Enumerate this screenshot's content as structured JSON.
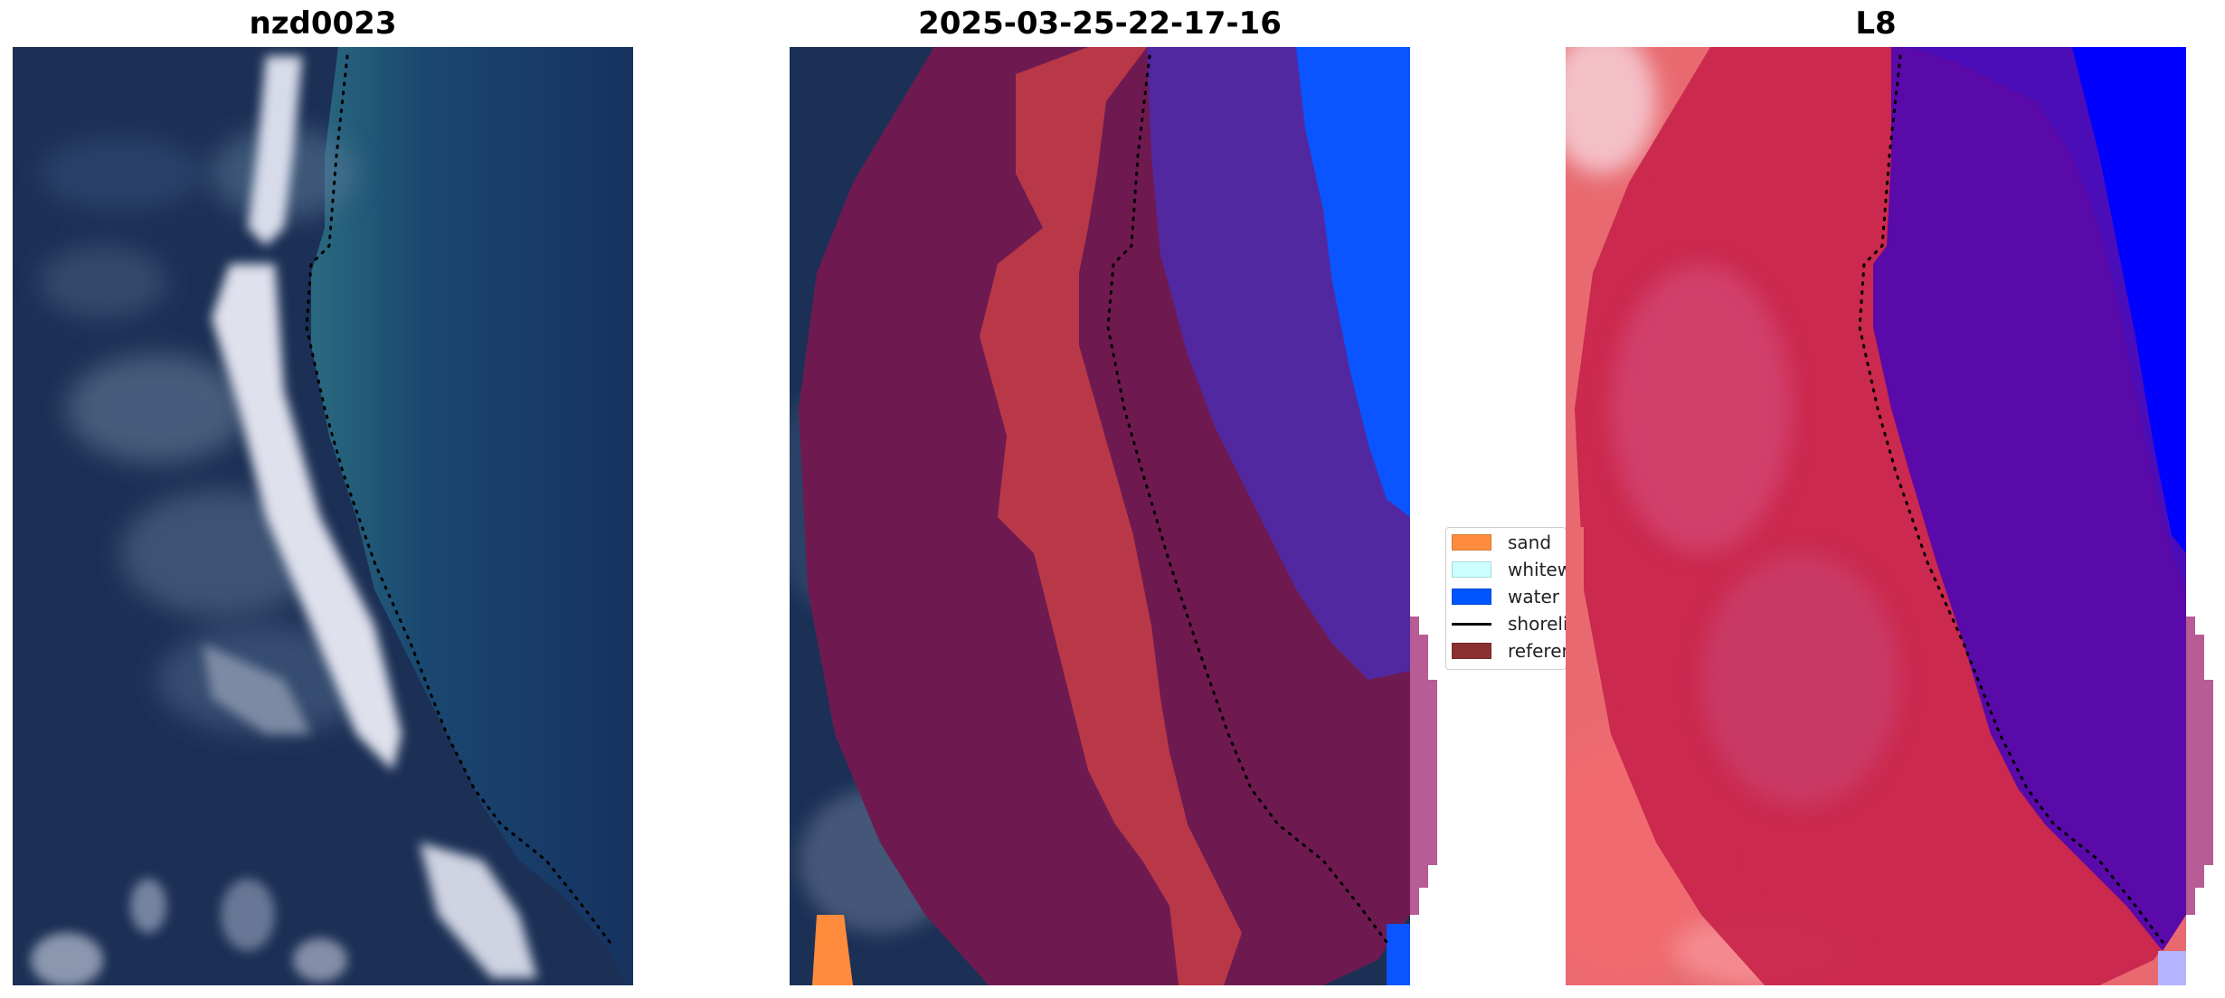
{
  "panels": [
    {
      "title": "nzd0023"
    },
    {
      "title": "2025-03-25-22-17-16"
    },
    {
      "title": "L8"
    }
  ],
  "legend": {
    "items": [
      {
        "label": "sand",
        "color": "#ff8c3c",
        "kind": "patch"
      },
      {
        "label": "whitewater",
        "color": "#ccffff",
        "kind": "patch"
      },
      {
        "label": "water",
        "color": "#0055ff",
        "kind": "patch"
      },
      {
        "label": "shoreline",
        "color": "#000000",
        "kind": "line"
      },
      {
        "label": "reference",
        "color": "#8b3030",
        "kind": "patch"
      }
    ]
  },
  "colors": {
    "deep_sea": "#163260",
    "land_dark": "#1c3055",
    "beach_white": "#e6e6f0",
    "overlay_land": "#6e1a50",
    "overlay_sand_class": "#b83848",
    "overlay_water_class": "#5228a0",
    "water_blue": "#0a55ff",
    "index_red": "#c8244a",
    "index_violet": "#5a0aa8",
    "index_blue": "#0000ff"
  }
}
